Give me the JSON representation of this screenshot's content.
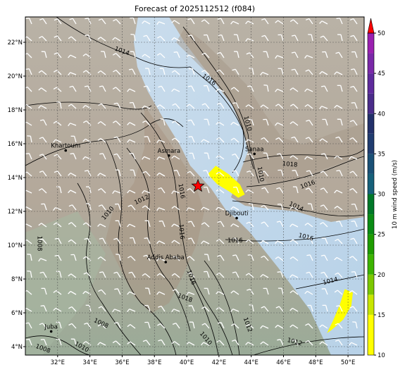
{
  "title": "Forecast of 2025112512 (f084)",
  "extent": {
    "lon_min": 30.0,
    "lon_max": 51.0,
    "lat_min": 3.5,
    "lat_max": 23.5
  },
  "axes": {
    "lon_ticks": [
      {
        "value": 32,
        "label": "32°E"
      },
      {
        "value": 34,
        "label": "34°E"
      },
      {
        "value": 36,
        "label": "36°E"
      },
      {
        "value": 38,
        "label": "38°E"
      },
      {
        "value": 40,
        "label": "40°E"
      },
      {
        "value": 42,
        "label": "42°E"
      },
      {
        "value": 44,
        "label": "44°E"
      },
      {
        "value": 46,
        "label": "46°E"
      },
      {
        "value": 48,
        "label": "48°E"
      },
      {
        "value": 50,
        "label": "50°E"
      }
    ],
    "lat_ticks": [
      {
        "value": 4,
        "label": "4°N"
      },
      {
        "value": 6,
        "label": "6°N"
      },
      {
        "value": 8,
        "label": "8°N"
      },
      {
        "value": 10,
        "label": "10°N"
      },
      {
        "value": 12,
        "label": "12°N"
      },
      {
        "value": 14,
        "label": "14°N"
      },
      {
        "value": 16,
        "label": "16°N"
      },
      {
        "value": 18,
        "label": "18°N"
      },
      {
        "value": 20,
        "label": "20°N"
      },
      {
        "value": 22,
        "label": "22°N"
      }
    ],
    "gridlines": true
  },
  "cities": [
    {
      "name": "Khartoum",
      "lon": 32.5,
      "lat": 15.6
    },
    {
      "name": "Asmara",
      "lon": 38.9,
      "lat": 15.3
    },
    {
      "name": "Sanaa",
      "lon": 44.2,
      "lat": 15.4
    },
    {
      "name": "Djibouti",
      "lon": 43.1,
      "lat": 11.6
    },
    {
      "name": "Addis Ababa",
      "lon": 38.7,
      "lat": 9.0
    },
    {
      "name": "Juba",
      "lon": 31.6,
      "lat": 4.9
    }
  ],
  "marker": {
    "type": "star",
    "lon": 40.7,
    "lat": 13.5,
    "color": "#ff0000"
  },
  "isobar_labels": [
    {
      "text": "1014",
      "lon": 36.0,
      "lat": 21.5,
      "rotate": 20
    },
    {
      "text": "1016",
      "lon": 41.4,
      "lat": 19.8,
      "rotate": 35
    },
    {
      "text": "1010",
      "lon": 43.8,
      "lat": 17.2,
      "rotate": 75
    },
    {
      "text": "1018",
      "lon": 46.4,
      "lat": 14.8,
      "rotate": 5
    },
    {
      "text": "1010",
      "lon": 44.6,
      "lat": 14.2,
      "rotate": 80
    },
    {
      "text": "1016",
      "lon": 47.5,
      "lat": 13.6,
      "rotate": -20
    },
    {
      "text": "1014",
      "lon": 46.8,
      "lat": 12.3,
      "rotate": 25
    },
    {
      "text": "1016",
      "lon": 47.4,
      "lat": 10.5,
      "rotate": 15
    },
    {
      "text": "1016",
      "lon": 43.0,
      "lat": 10.3,
      "rotate": 0
    },
    {
      "text": "1014",
      "lon": 48.9,
      "lat": 7.9,
      "rotate": -15
    },
    {
      "text": "1010",
      "lon": 35.1,
      "lat": 11.9,
      "rotate": -50
    },
    {
      "text": "1012",
      "lon": 37.2,
      "lat": 12.7,
      "rotate": -25
    },
    {
      "text": "1016",
      "lon": 39.7,
      "lat": 13.2,
      "rotate": 80
    },
    {
      "text": "1016",
      "lon": 39.7,
      "lat": 10.8,
      "rotate": 85
    },
    {
      "text": "1008",
      "lon": 30.9,
      "lat": 10.1,
      "rotate": 90
    },
    {
      "text": "1016",
      "lon": 40.3,
      "lat": 8.1,
      "rotate": 70
    },
    {
      "text": "1018",
      "lon": 39.9,
      "lat": 6.9,
      "rotate": 20
    },
    {
      "text": "1008",
      "lon": 34.7,
      "lat": 5.4,
      "rotate": 25
    },
    {
      "text": "1010",
      "lon": 33.5,
      "lat": 4.0,
      "rotate": 30
    },
    {
      "text": "1008",
      "lon": 31.1,
      "lat": 3.9,
      "rotate": 20
    },
    {
      "text": "1012",
      "lon": 43.8,
      "lat": 5.3,
      "rotate": 70
    },
    {
      "text": "1010",
      "lon": 41.2,
      "lat": 4.5,
      "rotate": 50
    },
    {
      "text": "1012",
      "lon": 46.7,
      "lat": 4.3,
      "rotate": 15
    }
  ],
  "wind_highlights": [
    {
      "color": "#ffff00",
      "speed": "10-15",
      "polygon": [
        [
          41.8,
          14.7
        ],
        [
          42.6,
          14.2
        ],
        [
          43.3,
          13.6
        ],
        [
          43.6,
          13.0
        ],
        [
          43.2,
          12.8
        ],
        [
          42.6,
          13.2
        ],
        [
          41.9,
          13.6
        ],
        [
          41.3,
          14.2
        ]
      ]
    },
    {
      "color": "#ffff00",
      "speed": "10-15",
      "polygon": [
        [
          49.8,
          7.4
        ],
        [
          50.3,
          7.2
        ],
        [
          50.2,
          6.4
        ],
        [
          49.7,
          5.6
        ],
        [
          49.0,
          5.0
        ],
        [
          48.7,
          4.8
        ],
        [
          49.1,
          5.6
        ],
        [
          49.5,
          6.5
        ]
      ]
    }
  ],
  "colorbar": {
    "label": "10 m wind speed (m/s)",
    "ticks": [
      10,
      15,
      20,
      25,
      30,
      35,
      40,
      45,
      50
    ],
    "bands": [
      {
        "from": 10,
        "to": 15,
        "color": "#ffff00"
      },
      {
        "from": 15,
        "to": 17.5,
        "color": "#c8e600"
      },
      {
        "from": 17.5,
        "to": 20,
        "color": "#7cc800"
      },
      {
        "from": 20,
        "to": 22.5,
        "color": "#3cb400"
      },
      {
        "from": 22.5,
        "to": 25,
        "color": "#1e9c00"
      },
      {
        "from": 25,
        "to": 27.5,
        "color": "#0a8c14"
      },
      {
        "from": 27.5,
        "to": 30,
        "color": "#007828"
      },
      {
        "from": 30,
        "to": 32.5,
        "color": "#16607a"
      },
      {
        "from": 32.5,
        "to": 35,
        "color": "#1a5076"
      },
      {
        "from": 35,
        "to": 37.5,
        "color": "#203c70"
      },
      {
        "from": 37.5,
        "to": 40,
        "color": "#22306a"
      },
      {
        "from": 40,
        "to": 42.5,
        "color": "#4a2c8a"
      },
      {
        "from": 42.5,
        "to": 45,
        "color": "#5e2a9c"
      },
      {
        "from": 45,
        "to": 47.5,
        "color": "#7a28a8"
      },
      {
        "from": 47.5,
        "to": 50,
        "color": "#9a20b0"
      }
    ],
    "extend_color": "#ff0000"
  }
}
